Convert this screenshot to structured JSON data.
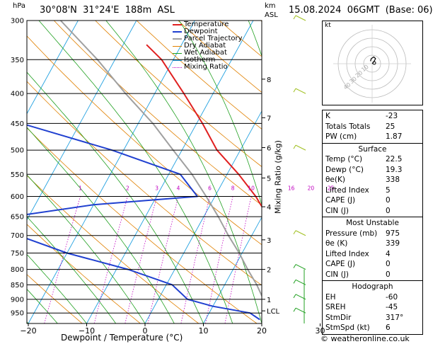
{
  "header": {
    "hpa_label": "hPa",
    "location": "30°08'N  31°24'E  188m  ASL",
    "km_label": "km",
    "asl_label": "ASL",
    "datetime": "15.08.2024  06GMT  (Base: 06)"
  },
  "footer": {
    "credit": "© weatheronline.co.uk"
  },
  "chart_data": {
    "type": "skew-t",
    "xlabel": "Dewpoint / Temperature (°C)",
    "ylabel_right": "Mixing Ratio (g/kg)",
    "x_ticks": [
      -40,
      -30,
      -20,
      -10,
      0,
      10,
      20,
      30
    ],
    "x_tick_labels": [
      "−40",
      "−30",
      "−20",
      "−10",
      "0",
      "10",
      "20",
      "30"
    ],
    "pressure_levels": [
      300,
      350,
      400,
      450,
      500,
      550,
      600,
      650,
      700,
      750,
      800,
      850,
      900,
      950
    ],
    "pressure_labels": [
      "300",
      "350",
      "400",
      "450",
      "500",
      "550",
      "600",
      "650",
      "700",
      "750",
      "800",
      "850",
      "900",
      "950"
    ],
    "km_ticks": [
      {
        "p": 378,
        "label": "8"
      },
      {
        "p": 440,
        "label": "7"
      },
      {
        "p": 495,
        "label": "6"
      },
      {
        "p": 558,
        "label": "5"
      },
      {
        "p": 625,
        "label": "4"
      },
      {
        "p": 712,
        "label": "3"
      },
      {
        "p": 800,
        "label": "2"
      },
      {
        "p": 900,
        "label": "1"
      },
      {
        "p": 942,
        "label": "LCL"
      }
    ],
    "mixing_ratio_labels": [
      "1",
      "2",
      "3",
      "4",
      "6",
      "8",
      "10",
      "16",
      "20",
      "25"
    ],
    "mixing_ratio_values": [
      1,
      2,
      3,
      4,
      6,
      8,
      10,
      16,
      20,
      25
    ],
    "legend": [
      "Temperature",
      "Dewpoint",
      "Parcel Trajectory",
      "Dry Adiabat",
      "Wet Adiabat",
      "Isotherm",
      "Mixing Ratio"
    ],
    "legend_colors": [
      "#e02020",
      "#2040d0",
      "#a0a0a0",
      "#e08000",
      "#20a020",
      "#20a0e0",
      "#c000c0"
    ],
    "temperature": [
      {
        "p": 975,
        "t": 22.5
      },
      {
        "p": 950,
        "t": 24
      },
      {
        "p": 925,
        "t": 25.5
      },
      {
        "p": 900,
        "t": 24.5
      },
      {
        "p": 850,
        "t": 22
      },
      {
        "p": 800,
        "t": 20
      },
      {
        "p": 750,
        "t": 18
      },
      {
        "p": 700,
        "t": 14.5
      },
      {
        "p": 650,
        "t": 11
      },
      {
        "p": 600,
        "t": 7
      },
      {
        "p": 550,
        "t": 2
      },
      {
        "p": 500,
        "t": -4
      },
      {
        "p": 450,
        "t": -9
      },
      {
        "p": 400,
        "t": -15
      },
      {
        "p": 350,
        "t": -22
      },
      {
        "p": 330,
        "t": -26
      }
    ],
    "dewpoint": [
      {
        "p": 975,
        "t": 19.3
      },
      {
        "p": 950,
        "t": 17
      },
      {
        "p": 925,
        "t": 10
      },
      {
        "p": 900,
        "t": 5
      },
      {
        "p": 850,
        "t": 1
      },
      {
        "p": 800,
        "t": -8
      },
      {
        "p": 750,
        "t": -20
      },
      {
        "p": 700,
        "t": -30
      },
      {
        "p": 650,
        "t": -33
      },
      {
        "p": 620,
        "t": -20
      },
      {
        "p": 600,
        "t": -3
      },
      {
        "p": 550,
        "t": -8
      },
      {
        "p": 500,
        "t": -22
      },
      {
        "p": 450,
        "t": -40
      },
      {
        "p": 400,
        "t": -49
      },
      {
        "p": 350,
        "t": -60
      },
      {
        "p": 300,
        "t": -65
      }
    ],
    "parcel": [
      {
        "p": 975,
        "t": 22.5
      },
      {
        "p": 942,
        "t": 19.8
      },
      {
        "p": 900,
        "t": 18
      },
      {
        "p": 850,
        "t": 15.5
      },
      {
        "p": 800,
        "t": 12.5
      },
      {
        "p": 750,
        "t": 9.5
      },
      {
        "p": 700,
        "t": 6
      },
      {
        "p": 650,
        "t": 2.5
      },
      {
        "p": 600,
        "t": -1.5
      },
      {
        "p": 550,
        "t": -6
      },
      {
        "p": 500,
        "t": -11.5
      },
      {
        "p": 450,
        "t": -17.5
      },
      {
        "p": 400,
        "t": -25
      },
      {
        "p": 350,
        "t": -33
      },
      {
        "p": 300,
        "t": -43
      }
    ]
  },
  "hodograph": {
    "label": "kt",
    "ring_labels": [
      "10",
      "20",
      "30",
      "40"
    ],
    "wind_trace": [
      [
        0,
        0
      ],
      [
        1,
        1
      ],
      [
        3,
        4
      ],
      [
        4,
        6
      ],
      [
        2,
        8
      ],
      [
        -1,
        6
      ],
      [
        -2,
        3
      ]
    ]
  },
  "table": {
    "top": [
      {
        "label": "K",
        "value": "-23"
      },
      {
        "label": "Totals Totals",
        "value": "25"
      },
      {
        "label": "PW (cm)",
        "value": "1.87"
      }
    ],
    "surface": {
      "title": "Surface",
      "rows": [
        {
          "label": "Temp (°C)",
          "value": "22.5"
        },
        {
          "label": "Dewp (°C)",
          "value": "19.3"
        },
        {
          "label": "θe(K)",
          "value": "338"
        },
        {
          "label": "Lifted Index",
          "value": "5"
        },
        {
          "label": "CAPE (J)",
          "value": "0"
        },
        {
          "label": "CIN (J)",
          "value": "0"
        }
      ]
    },
    "unstable": {
      "title": "Most Unstable",
      "rows": [
        {
          "label": "Pressure (mb)",
          "value": "975"
        },
        {
          "label": "θe (K)",
          "value": "339"
        },
        {
          "label": "Lifted Index",
          "value": "4"
        },
        {
          "label": "CAPE (J)",
          "value": "0"
        },
        {
          "label": "CIN (J)",
          "value": "0"
        }
      ]
    },
    "hodo": {
      "title": "Hodograph",
      "rows": [
        {
          "label": "EH",
          "value": "-60"
        },
        {
          "label": "SREH",
          "value": "-45"
        },
        {
          "label": "StmDir",
          "value": "317°"
        },
        {
          "label": "StmSpd (kt)",
          "value": "6"
        }
      ]
    }
  }
}
